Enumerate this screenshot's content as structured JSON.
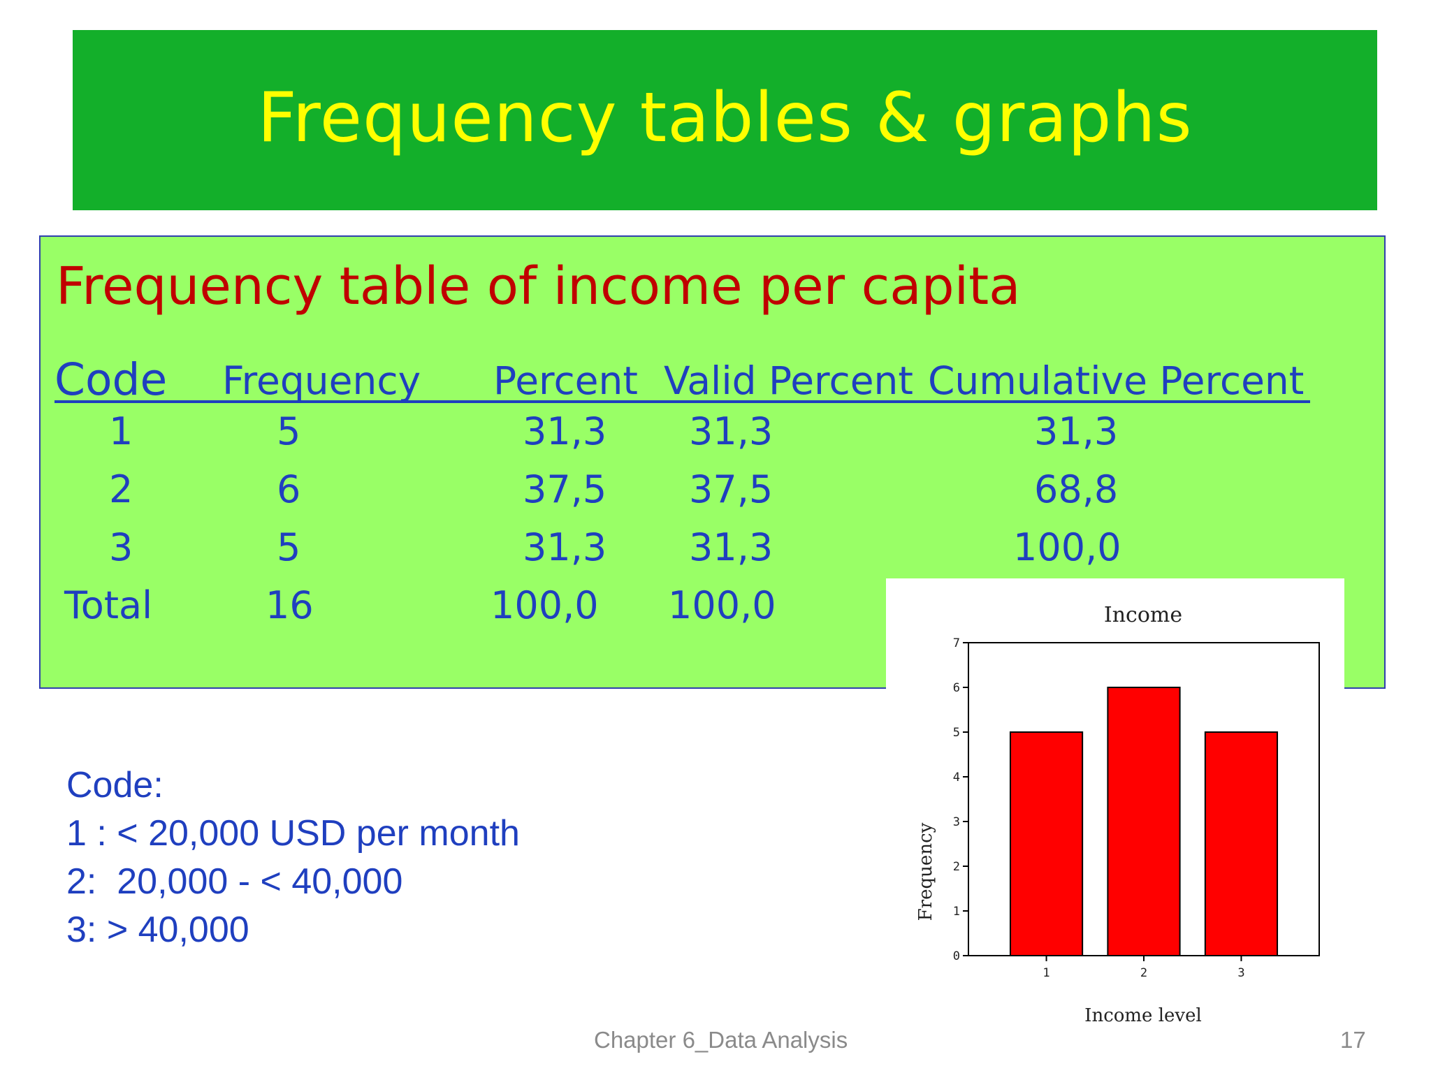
{
  "slide": {
    "title": "Frequency tables & graphs",
    "footer": "Chapter 6_Data Analysis",
    "page_number": "17",
    "colors": {
      "banner": "#13af2a",
      "title_text": "#ffff00",
      "panel": "#99ff66",
      "panel_title": "#c00000",
      "table_text": "#1f3fbf",
      "bar_fill": "#ff0000"
    }
  },
  "table": {
    "title": "Frequency table of income per capita",
    "headers": {
      "code": "Code",
      "frequency": "Frequency",
      "percent": "Percent",
      "valid_percent": "Valid Percent",
      "cumulative_percent": "Cumulative Percent"
    },
    "rows": [
      {
        "code": "1",
        "frequency": "5",
        "percent": "31,3",
        "valid_percent": "31,3",
        "cumulative_percent": "31,3"
      },
      {
        "code": "2",
        "frequency": "6",
        "percent": "37,5",
        "valid_percent": "37,5",
        "cumulative_percent": "68,8"
      },
      {
        "code": "3",
        "frequency": "5",
        "percent": "31,3",
        "valid_percent": "31,3",
        "cumulative_percent": "100,0"
      }
    ],
    "total": {
      "label": "Total",
      "frequency": "16",
      "percent": "100,0",
      "valid_percent": "100,0"
    }
  },
  "code_legend": {
    "title": "Code:",
    "items": [
      "1 : < 20,000 USD per month",
      "2:  20,000 - < 40,000",
      "3: > 40,000"
    ]
  },
  "chart_data": {
    "type": "bar",
    "title": "Income",
    "xlabel": "Income level",
    "ylabel": "Frequency",
    "categories": [
      "1",
      "2",
      "3"
    ],
    "values": [
      5,
      6,
      5
    ],
    "ylim": [
      0,
      7
    ],
    "yticks": [
      0,
      1,
      2,
      3,
      4,
      5,
      6,
      7
    ],
    "grid": false
  }
}
